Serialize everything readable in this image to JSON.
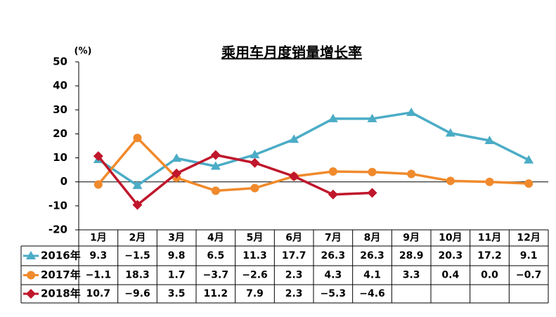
{
  "chart_data": {
    "type": "line",
    "title": "乘用车月度销量增长率",
    "y_label": "(%)",
    "categories": [
      "1月",
      "2月",
      "3月",
      "4月",
      "5月",
      "6月",
      "7月",
      "8月",
      "9月",
      "10月",
      "11月",
      "12月"
    ],
    "ylim": [
      -20,
      50
    ],
    "yticks": [
      -20,
      -10,
      0,
      10,
      20,
      30,
      40,
      50
    ],
    "series": [
      {
        "name": "2016年",
        "color": "#4bacc6",
        "marker": "triangle",
        "values": [
          9.3,
          -1.5,
          9.8,
          6.5,
          11.3,
          17.7,
          26.3,
          26.3,
          28.9,
          20.3,
          17.2,
          9.1
        ],
        "value_labels": [
          "9.3",
          "−1.5",
          "9.8",
          "6.5",
          "11.3",
          "17.7",
          "26.3",
          "26.3",
          "28.9",
          "20.3",
          "17.2",
          "9.1"
        ]
      },
      {
        "name": "2017年",
        "color": "#f08a2c",
        "marker": "circle",
        "values": [
          -1.1,
          18.3,
          1.7,
          -3.7,
          -2.6,
          2.3,
          4.3,
          4.1,
          3.3,
          0.4,
          0.0,
          -0.7
        ],
        "value_labels": [
          "−1.1",
          "18.3",
          "1.7",
          "−3.7",
          "−2.6",
          "2.3",
          "4.3",
          "4.1",
          "3.3",
          "0.4",
          "0.0",
          "−0.7"
        ]
      },
      {
        "name": "2018年",
        "color": "#c0172c",
        "marker": "diamond",
        "values": [
          10.7,
          -9.6,
          3.5,
          11.2,
          7.9,
          2.3,
          -5.3,
          -4.6,
          null,
          null,
          null,
          null
        ],
        "value_labels": [
          "10.7",
          "−9.6",
          "3.5",
          "11.2",
          "7.9",
          "2.3",
          "−5.3",
          "−4.6",
          null,
          null,
          null,
          null
        ]
      }
    ]
  }
}
